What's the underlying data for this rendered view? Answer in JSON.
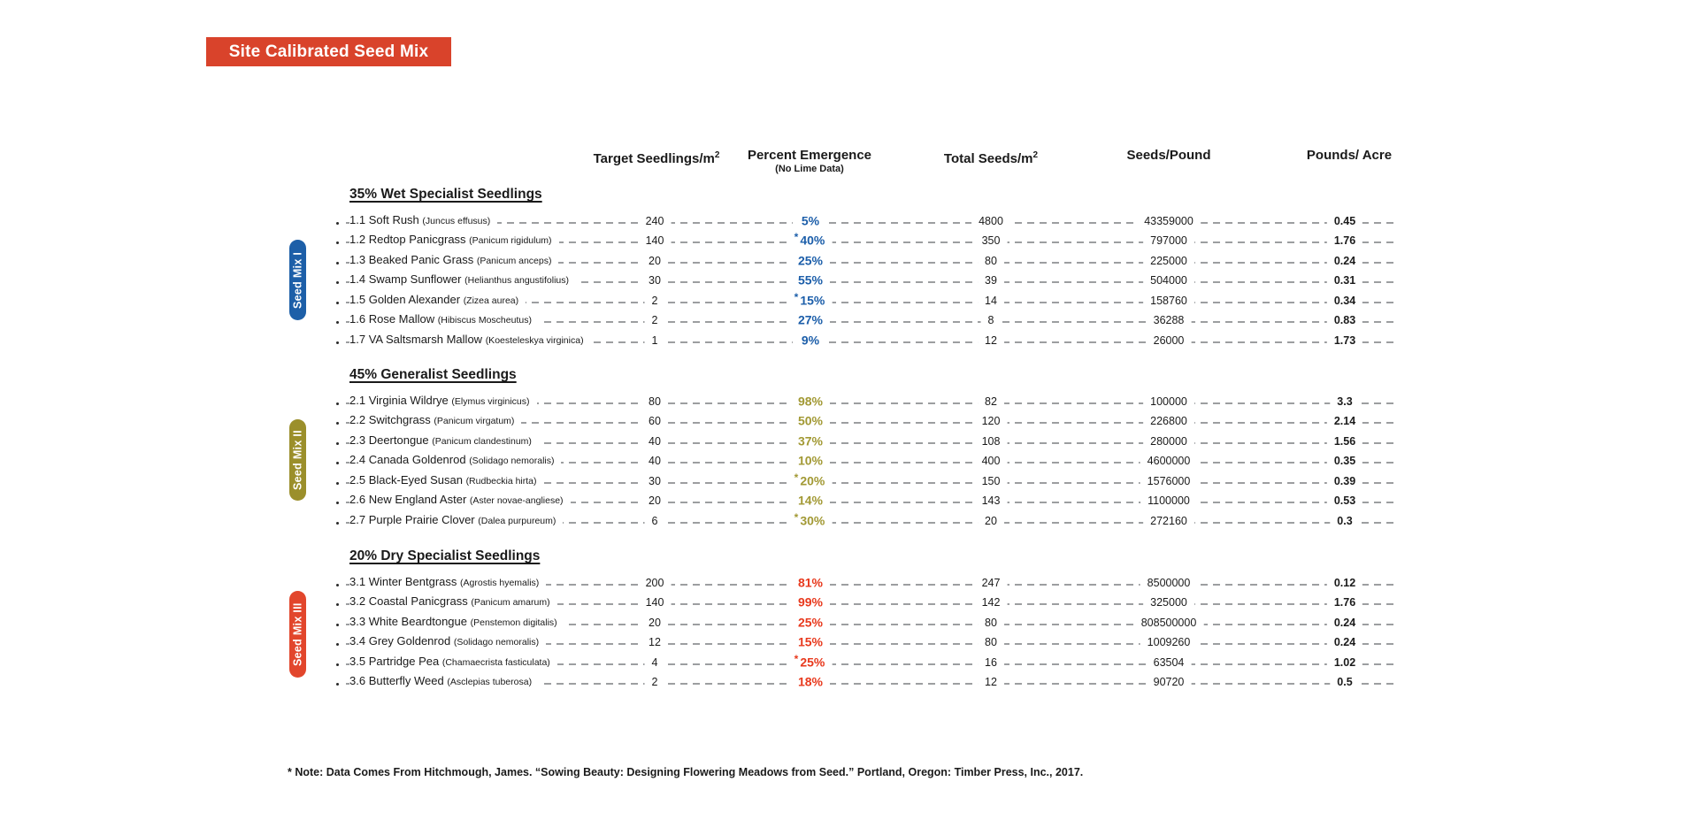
{
  "title": "Site Calibrated Seed Mix",
  "colors": {
    "banner": "#D9432B",
    "mix1_pill": "#1D5FA8",
    "mix2_pill": "#9B8F2B",
    "mix3_pill": "#E2462C",
    "mix1_percent": "#1D5FAA",
    "mix2_percent": "#A29934",
    "mix3_percent": "#E8391D"
  },
  "columns": {
    "target": {
      "label": "Target Seedlings/m",
      "sup": "2"
    },
    "percent": {
      "label": "Percent Emergence",
      "subnote": "(No Lime Data)"
    },
    "total": {
      "label": "Total Seeds/m",
      "sup": "2"
    },
    "seeds_per_pound": {
      "label": "Seeds/Pound"
    },
    "pounds_per_acre": {
      "label": "Pounds/ Acre"
    }
  },
  "footnote": "* Note: Data Comes From Hitchmough, James. “Sowing Beauty: Designing Flowering Meadows from Seed.” Portland, Oregon: Timber Press, Inc., 2017.",
  "sections": [
    {
      "side_label": "Seed Mix I",
      "heading": "35% Wet Specialist Seedlings",
      "rows": [
        {
          "num": "1.1",
          "name": "Soft Rush",
          "latin": "(Juncus effusus)",
          "target": "240",
          "star": false,
          "percent": "5%",
          "total_seeds": "4800",
          "seeds_per_pound": "43359000",
          "pounds_per_acre": "0.45"
        },
        {
          "num": "1.2",
          "name": "Redtop Panicgrass",
          "latin": "(Panicum rigidulum)",
          "target": "140",
          "star": true,
          "percent": "40%",
          "total_seeds": "350",
          "seeds_per_pound": "797000",
          "pounds_per_acre": "1.76"
        },
        {
          "num": "1.3",
          "name": "Beaked Panic Grass",
          "latin": "(Panicum anceps)",
          "target": "20",
          "star": false,
          "percent": "25%",
          "total_seeds": "80",
          "seeds_per_pound": "225000",
          "pounds_per_acre": "0.24"
        },
        {
          "num": "1.4",
          "name": "Swamp Sunflower",
          "latin": "(Helianthus angustifolius)",
          "target": "30",
          "star": false,
          "percent": "55%",
          "total_seeds": "39",
          "seeds_per_pound": "504000",
          "pounds_per_acre": "0.31"
        },
        {
          "num": "1.5",
          "name": "Golden Alexander",
          "latin": "(Zizea aurea)",
          "target": "2",
          "star": true,
          "percent": "15%",
          "total_seeds": "14",
          "seeds_per_pound": "158760",
          "pounds_per_acre": "0.34"
        },
        {
          "num": "1.6",
          "name": "Rose Mallow",
          "latin": "(Hibiscus Moscheutus)",
          "target": "2",
          "star": false,
          "percent": "27%",
          "total_seeds": "8",
          "seeds_per_pound": "36288",
          "pounds_per_acre": "0.83"
        },
        {
          "num": "1.7",
          "name": "VA Saltsmarsh Mallow",
          "latin": "(Koesteleskya virginica)",
          "target": "1",
          "star": false,
          "percent": "9%",
          "total_seeds": "12",
          "seeds_per_pound": "26000",
          "pounds_per_acre": "1.73"
        }
      ]
    },
    {
      "side_label": "Seed Mix II",
      "heading": "45% Generalist Seedlings",
      "rows": [
        {
          "num": "2.1",
          "name": "Virginia Wildrye",
          "latin": "(Elymus virginicus)",
          "target": "80",
          "star": false,
          "percent": "98%",
          "total_seeds": "82",
          "seeds_per_pound": "100000",
          "pounds_per_acre": "3.3"
        },
        {
          "num": "2.2",
          "name": "Switchgrass",
          "latin": "(Panicum virgatum)",
          "target": "60",
          "star": false,
          "percent": "50%",
          "total_seeds": "120",
          "seeds_per_pound": "226800",
          "pounds_per_acre": "2.14"
        },
        {
          "num": "2.3",
          "name": "Deertongue",
          "latin": "(Panicum clandestinum)",
          "target": "40",
          "star": false,
          "percent": "37%",
          "total_seeds": "108",
          "seeds_per_pound": "280000",
          "pounds_per_acre": "1.56"
        },
        {
          "num": "2.4",
          "name": "Canada Goldenrod",
          "latin": "(Solidago nemoralis)",
          "target": "40",
          "star": false,
          "percent": "10%",
          "total_seeds": "400",
          "seeds_per_pound": "4600000",
          "pounds_per_acre": "0.35"
        },
        {
          "num": "2.5",
          "name": "Black-Eyed Susan",
          "latin": "(Rudbeckia hirta)",
          "target": "30",
          "star": true,
          "percent": "20%",
          "total_seeds": "150",
          "seeds_per_pound": "1576000",
          "pounds_per_acre": "0.39"
        },
        {
          "num": "2.6",
          "name": "New England Aster",
          "latin": "(Aster novae-angliese)",
          "target": "20",
          "star": false,
          "percent": "14%",
          "total_seeds": "143",
          "seeds_per_pound": "1100000",
          "pounds_per_acre": "0.53"
        },
        {
          "num": "2.7",
          "name": "Purple Prairie Clover",
          "latin": "(Dalea purpureum)",
          "target": "6",
          "star": true,
          "percent": "30%",
          "total_seeds": "20",
          "seeds_per_pound": "272160",
          "pounds_per_acre": "0.3"
        }
      ]
    },
    {
      "side_label": "Seed Mix III",
      "heading": "20% Dry Specialist Seedlings",
      "rows": [
        {
          "num": "3.1",
          "name": "Winter Bentgrass",
          "latin": "(Agrostis hyemalis)",
          "target": "200",
          "star": false,
          "percent": "81%",
          "total_seeds": "247",
          "seeds_per_pound": "8500000",
          "pounds_per_acre": "0.12"
        },
        {
          "num": "3.2",
          "name": "Coastal Panicgrass",
          "latin": "(Panicum amarum)",
          "target": "140",
          "star": false,
          "percent": "99%",
          "total_seeds": "142",
          "seeds_per_pound": "325000",
          "pounds_per_acre": "1.76"
        },
        {
          "num": "3.3",
          "name": "White Beardtongue",
          "latin": "(Penstemon digitalis)",
          "target": "20",
          "star": false,
          "percent": "25%",
          "total_seeds": "80",
          "seeds_per_pound": "808500000",
          "pounds_per_acre": "0.24"
        },
        {
          "num": "3.4",
          "name": "Grey Goldenrod",
          "latin": "(Solidago nemoralis)",
          "target": "12",
          "star": false,
          "percent": "15%",
          "total_seeds": "80",
          "seeds_per_pound": "1009260",
          "pounds_per_acre": "0.24"
        },
        {
          "num": "3.5",
          "name": "Partridge Pea",
          "latin": "(Chamaecrista fasticulata)",
          "target": "4",
          "star": true,
          "percent": "25%",
          "total_seeds": "16",
          "seeds_per_pound": "63504",
          "pounds_per_acre": "1.02"
        },
        {
          "num": "3.6",
          "name": "Butterfly Weed",
          "latin": "(Asclepias tuberosa)",
          "target": "2",
          "star": false,
          "percent": "18%",
          "total_seeds": "12",
          "seeds_per_pound": "90720",
          "pounds_per_acre": "0.5"
        }
      ]
    }
  ]
}
